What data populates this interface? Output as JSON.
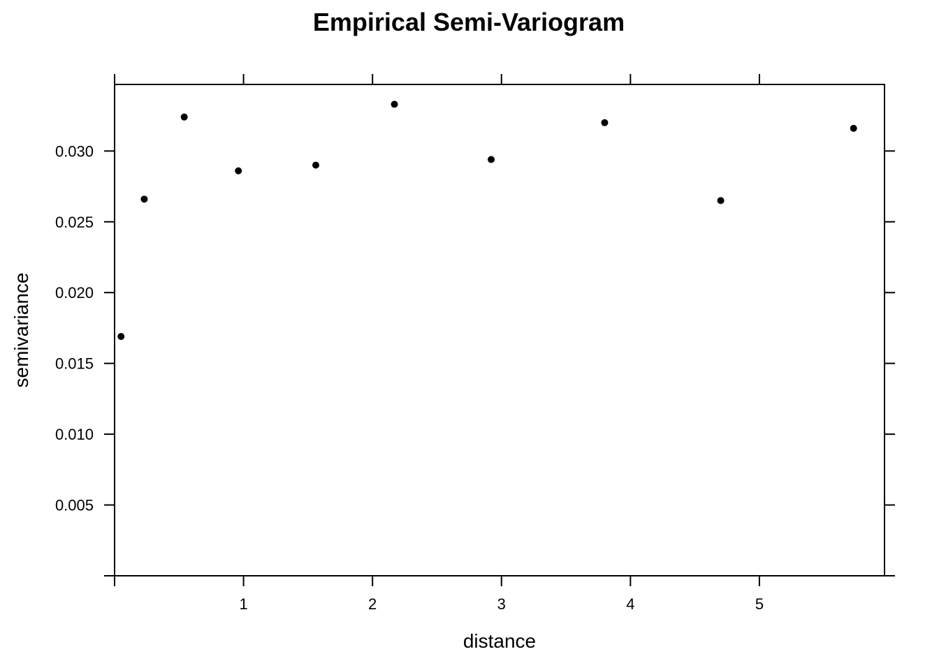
{
  "chart_data": {
    "type": "scatter",
    "title": "Empirical Semi-Variogram",
    "xlabel": "distance",
    "ylabel": "semivariance",
    "xlim": [
      0,
      5.97
    ],
    "ylim": [
      0,
      0.0347
    ],
    "grid": false,
    "x_ticks": [
      {
        "value": 0,
        "label": ""
      },
      {
        "value": 1,
        "label": "1"
      },
      {
        "value": 2,
        "label": "2"
      },
      {
        "value": 3,
        "label": "3"
      },
      {
        "value": 4,
        "label": "4"
      },
      {
        "value": 5,
        "label": "5"
      }
    ],
    "y_ticks": [
      {
        "value": 0,
        "label": ""
      },
      {
        "value": 0.005,
        "label": "0.005"
      },
      {
        "value": 0.01,
        "label": "0.010"
      },
      {
        "value": 0.015,
        "label": "0.015"
      },
      {
        "value": 0.02,
        "label": "0.020"
      },
      {
        "value": 0.025,
        "label": "0.025"
      },
      {
        "value": 0.03,
        "label": "0.030"
      }
    ],
    "points": [
      {
        "x": 0.05,
        "y": 0.0169
      },
      {
        "x": 0.23,
        "y": 0.0266
      },
      {
        "x": 0.54,
        "y": 0.0324
      },
      {
        "x": 0.96,
        "y": 0.0286
      },
      {
        "x": 1.56,
        "y": 0.029
      },
      {
        "x": 2.17,
        "y": 0.0333
      },
      {
        "x": 2.92,
        "y": 0.0294
      },
      {
        "x": 3.8,
        "y": 0.032
      },
      {
        "x": 4.7,
        "y": 0.0265
      },
      {
        "x": 5.73,
        "y": 0.0316
      }
    ],
    "colors": {
      "points": "#000000",
      "axes": "#000000"
    }
  }
}
